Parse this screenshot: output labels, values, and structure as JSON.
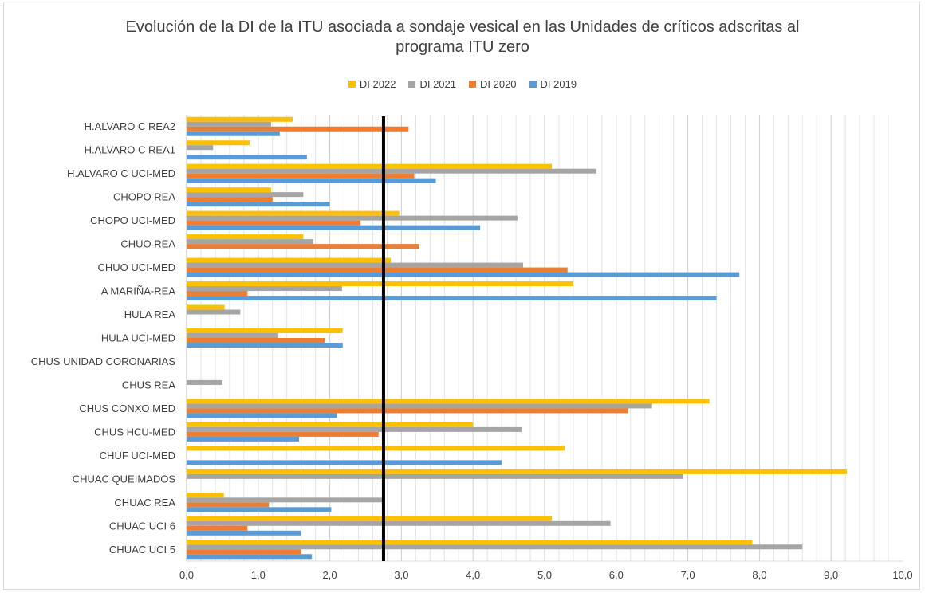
{
  "title_line1": "Evolución de la DI de la ITU asociada a sondaje vesical en las Unidades de críticos adscritas al",
  "title_line2": "programa ITU zero",
  "colors": {
    "DI 2022": "#ffc000",
    "DI 2021": "#a5a5a5",
    "DI 2020": "#ed7d31",
    "DI 2019": "#5b9bd5",
    "reference_line": "#000000"
  },
  "chart_data": {
    "type": "bar",
    "orientation": "horizontal",
    "title": "Evolución de la DI de la ITU asociada a sondaje vesical en las Unidades de críticos adscritas al programa ITU zero",
    "legend_position": "top",
    "grid": true,
    "xlim": [
      0,
      10
    ],
    "x_ticks": [
      "0,0",
      "1,0",
      "2,0",
      "3,0",
      "4,0",
      "5,0",
      "6,0",
      "7,0",
      "8,0",
      "9,0",
      "10,0"
    ],
    "reference_line_x": 2.75,
    "categories": [
      "H.ALVARO C REA2",
      "H.ALVARO C REA1",
      "H.ALVARO C UCI-MED",
      "CHOPO REA",
      "CHOPO UCI-MED",
      "CHUO REA",
      "CHUO UCI-MED",
      "A MARIÑA-REA",
      "HULA REA",
      "HULA UCI-MED",
      "CHUS UNIDAD CORONARIAS",
      "CHUS REA",
      "CHUS CONXO MED",
      "CHUS HCU-MED",
      "CHUF UCI-MED",
      "CHUAC QUEIMADOS",
      "CHUAC REA",
      "CHUAC UCI 6",
      "CHUAC UCI 5"
    ],
    "series": [
      {
        "name": "DI 2022",
        "values": [
          1.48,
          0.88,
          5.1,
          1.18,
          2.97,
          1.63,
          2.85,
          5.4,
          0.53,
          2.18,
          0,
          0,
          7.3,
          4.0,
          5.28,
          9.22,
          0.52,
          5.1,
          7.9
        ]
      },
      {
        "name": "DI 2021",
        "values": [
          1.18,
          0.37,
          5.72,
          1.63,
          4.62,
          1.77,
          4.7,
          2.17,
          0.75,
          1.28,
          0,
          0.5,
          6.5,
          4.68,
          0,
          6.93,
          2.73,
          5.92,
          8.6
        ]
      },
      {
        "name": "DI 2020",
        "values": [
          3.1,
          0,
          3.18,
          1.2,
          2.43,
          3.25,
          5.32,
          0.85,
          0,
          1.93,
          0,
          0,
          6.17,
          2.68,
          0,
          0,
          1.15,
          0.85,
          1.6
        ]
      },
      {
        "name": "DI 2019",
        "values": [
          1.3,
          1.68,
          3.48,
          2.0,
          4.1,
          0,
          7.72,
          7.4,
          0,
          2.18,
          0,
          0,
          2.1,
          1.57,
          4.4,
          0,
          2.02,
          1.6,
          1.75
        ]
      }
    ]
  }
}
